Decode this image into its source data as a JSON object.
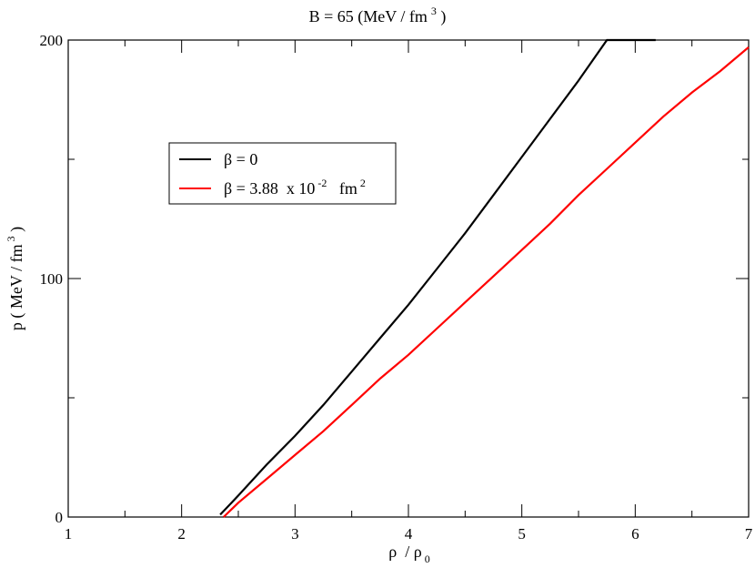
{
  "chart_data": {
    "type": "line",
    "title": {
      "main": "B = 65  (MeV / fm",
      "sup": "3",
      "close": " )"
    },
    "xlabel": {
      "rho": "ρ",
      "slash": "  / ",
      "rho2": "ρ",
      "sub": "0"
    },
    "ylabel": {
      "main": "p ( MeV / fm",
      "sup": "3",
      "close": " )"
    },
    "xlim": [
      1,
      7
    ],
    "ylim": [
      0,
      200
    ],
    "x_ticks": [
      1,
      2,
      3,
      4,
      5,
      6,
      7
    ],
    "x_tick_labels": [
      "1",
      "2",
      "3",
      "4",
      "5",
      "6",
      "7"
    ],
    "y_ticks": [
      0,
      100,
      200
    ],
    "y_tick_labels": [
      "0",
      "100",
      "200"
    ],
    "x_minor_step": 0.5,
    "y_minor_step": 50,
    "grid": false,
    "legend_position": "upper-left",
    "series": [
      {
        "name": "β = 0",
        "color": "#000000",
        "x": [
          2.34,
          2.5,
          2.75,
          3.0,
          3.25,
          3.5,
          3.75,
          4.0,
          4.25,
          4.5,
          4.75,
          5.0,
          5.25,
          5.5,
          5.75,
          6.0,
          6.18
        ],
        "y": [
          1,
          9,
          22,
          34,
          47,
          61,
          75,
          89,
          104,
          119,
          135,
          151,
          167,
          183,
          200,
          216,
          200
        ]
      },
      {
        "name": "β = 3.88  x 10^-2  fm^2",
        "color": "#ff0000",
        "x": [
          2.37,
          2.5,
          2.75,
          3.0,
          3.25,
          3.5,
          3.75,
          4.0,
          4.25,
          4.5,
          4.75,
          5.0,
          5.25,
          5.5,
          5.75,
          6.0,
          6.25,
          6.5,
          6.75,
          7.0
        ],
        "y": [
          0,
          6,
          16,
          26,
          36,
          47,
          58,
          68,
          79,
          90,
          101,
          112,
          123,
          135,
          146,
          157,
          168,
          178,
          187,
          197
        ]
      }
    ],
    "legend": {
      "items": [
        {
          "color": "#000000",
          "beta": "β",
          "text": " = 0"
        },
        {
          "color": "#ff0000",
          "beta": "β",
          "text": " = 3.88  x 10",
          "sup1": "-2",
          "mid": "   fm",
          "sup2": "2"
        }
      ]
    }
  }
}
